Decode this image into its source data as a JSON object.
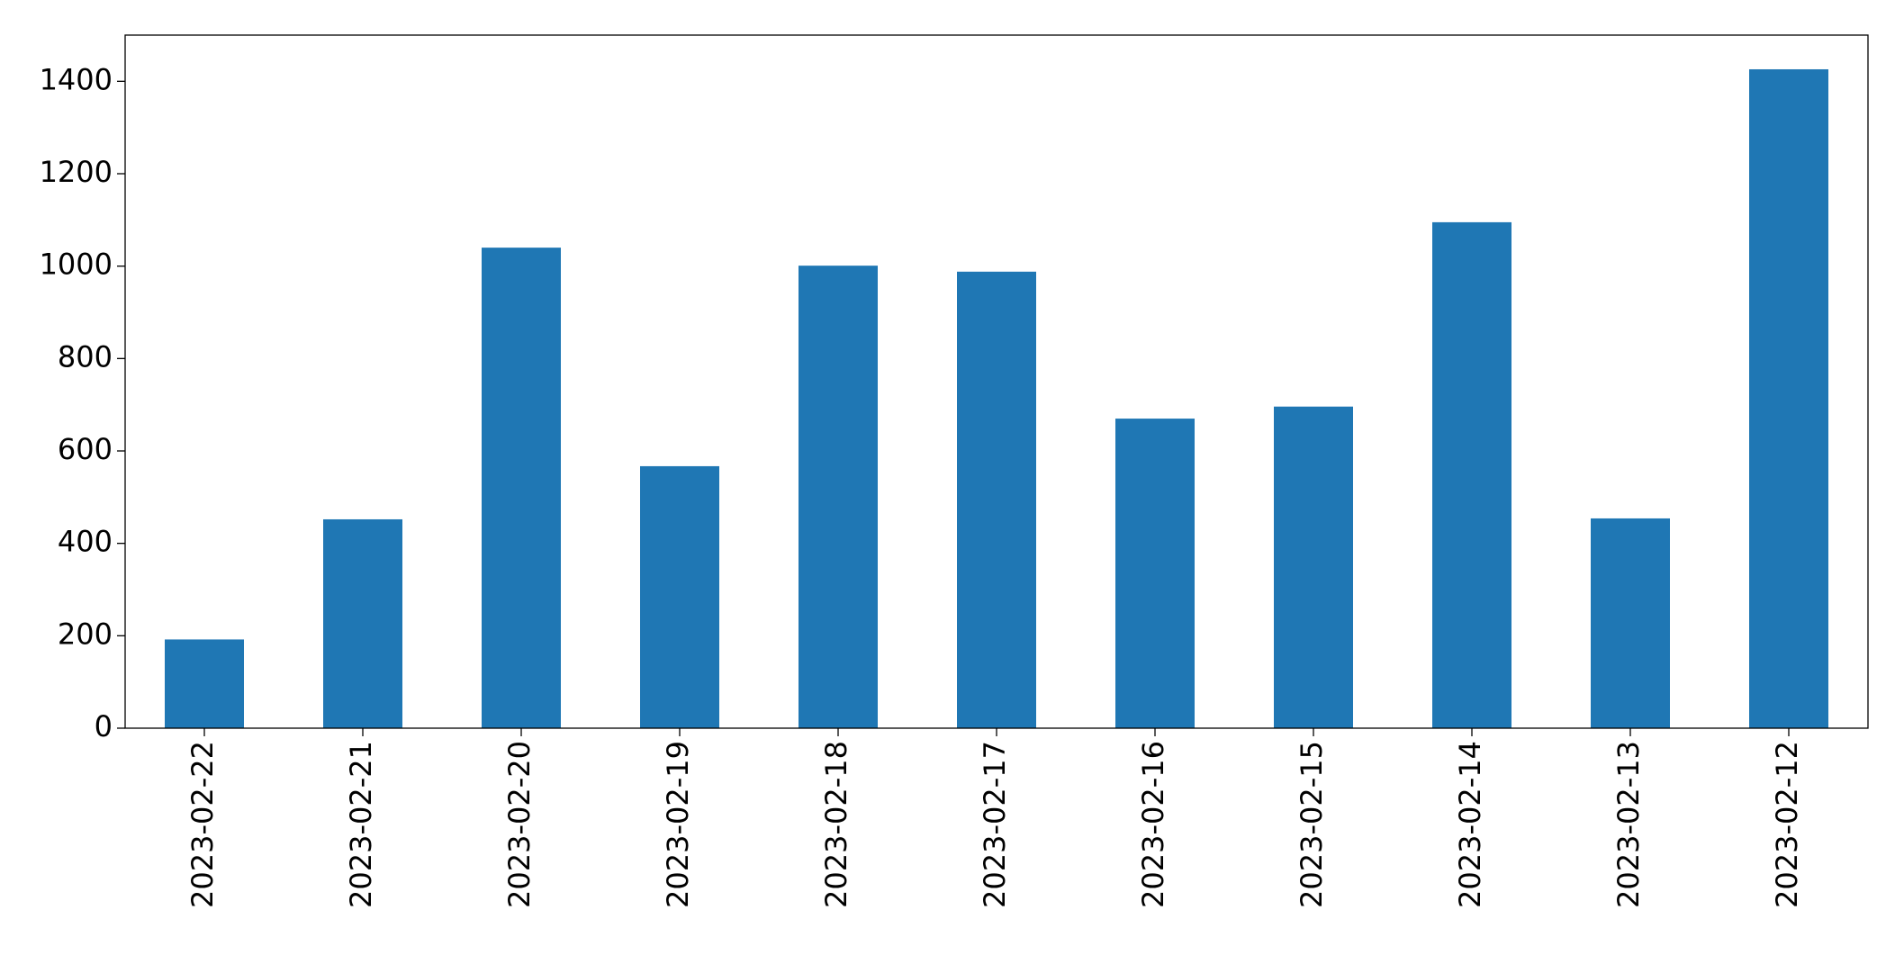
{
  "chart_data": {
    "type": "bar",
    "categories": [
      "2023-02-22",
      "2023-02-21",
      "2023-02-20",
      "2023-02-19",
      "2023-02-18",
      "2023-02-17",
      "2023-02-16",
      "2023-02-15",
      "2023-02-14",
      "2023-02-13",
      "2023-02-12"
    ],
    "values": [
      192,
      452,
      1040,
      567,
      1001,
      988,
      670,
      696,
      1095,
      454,
      1426
    ],
    "color": "#1f77b4",
    "ylim": [
      0,
      1500
    ],
    "yticks": [
      0,
      200,
      400,
      600,
      800,
      1000,
      1200,
      1400
    ],
    "grid": false
  }
}
